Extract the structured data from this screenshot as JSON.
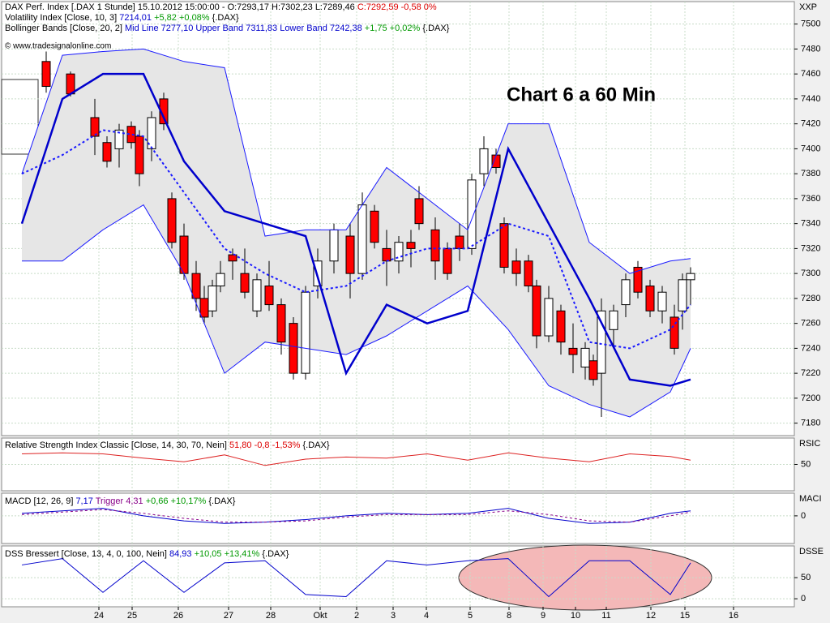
{
  "chart_data": [
    {
      "type": "candlestick",
      "header": [
        [
          {
            "text": "DAX Perf. Index [.DAX  1 Stunde] 15.10.2012 15:00:00 - O:7293,17 H:7302,23 L:7289,46 ",
            "color": "#000000"
          },
          {
            "text": "C:7292,59 -0,58 0%",
            "color": "#dd0000"
          }
        ],
        [
          {
            "text": "Volatility Index [Close, 10, 3] ",
            "color": "#000000"
          },
          {
            "text": "7214,01 ",
            "color": "#0000cc"
          },
          {
            "text": "+5,82 +0,08% ",
            "color": "#009900"
          },
          {
            "text": "{.DAX}",
            "color": "#000000"
          }
        ],
        [
          {
            "text": "Bollinger Bands [Close, 20, 2] ",
            "color": "#000000"
          },
          {
            "text": "Mid Line 7277,10 Upper Band 7311,83 Lower Band 7242,38 ",
            "color": "#0000cc"
          },
          {
            "text": "+1,75 +0,02% ",
            "color": "#009900"
          },
          {
            "text": "{.DAX}",
            "color": "#000000"
          }
        ]
      ],
      "watermark": "© www.tradesignalonline.com",
      "annotation": "Chart 6 a 60 Min",
      "axis_label": "XXP",
      "grid": true,
      "xlim": [
        0,
        195.6
      ],
      "xticks": [
        {
          "value": 24,
          "label": "24"
        },
        {
          "value": 32.2,
          "label": "25"
        },
        {
          "value": 43.6,
          "label": "26"
        },
        {
          "value": 56,
          "label": "27"
        },
        {
          "value": 66.4,
          "label": "28"
        },
        {
          "value": 78.6,
          "label": "Okt"
        },
        {
          "value": 87.6,
          "label": "2"
        },
        {
          "value": 96.6,
          "label": "3"
        },
        {
          "value": 104.8,
          "label": "4"
        },
        {
          "value": 115.6,
          "label": "5"
        },
        {
          "value": 125.2,
          "label": "8"
        },
        {
          "value": 133.6,
          "label": "9"
        },
        {
          "value": 141.6,
          "label": "10"
        },
        {
          "value": 149.2,
          "label": "11"
        },
        {
          "value": 160.2,
          "label": "12"
        },
        {
          "value": 168.6,
          "label": "15"
        },
        {
          "value": 180.6,
          "label": "16"
        }
      ],
      "ylim": [
        7170,
        7518
      ],
      "yticks": [
        7180,
        7200,
        7220,
        7240,
        7260,
        7280,
        7300,
        7320,
        7340,
        7360,
        7380,
        7400,
        7420,
        7440,
        7460,
        7480,
        7500
      ],
      "up_color": "#ffffff",
      "down_color": "#ff0000",
      "candles": {
        "x": [
          11,
          17,
          23,
          26,
          29,
          32,
          34,
          37,
          40,
          42,
          45,
          48,
          50,
          52,
          54,
          57,
          60,
          63,
          66,
          69,
          72,
          75,
          78,
          82,
          86,
          89,
          92,
          95,
          98,
          101,
          103,
          107,
          110,
          113,
          116,
          119,
          122,
          124,
          127,
          130,
          132,
          135,
          138,
          141,
          144,
          146,
          148,
          151,
          154,
          157,
          160,
          163,
          166,
          168,
          170
        ],
        "open": [
          7470,
          7460,
          7425,
          7405,
          7400,
          7418,
          7410,
          7400,
          7440,
          7360,
          7330,
          7300,
          7280,
          7270,
          7290,
          7315,
          7300,
          7270,
          7290,
          7275,
          7260,
          7220,
          7290,
          7310,
          7330,
          7300,
          7350,
          7320,
          7310,
          7325,
          7360,
          7335,
          7320,
          7330,
          7320,
          7380,
          7395,
          7340,
          7310,
          7310,
          7290,
          7250,
          7270,
          7240,
          7225,
          7230,
          7220,
          7255,
          7275,
          7305,
          7290,
          7270,
          7265,
          7270,
          7295
        ],
        "high": [
          7478,
          7462,
          7440,
          7410,
          7420,
          7422,
          7415,
          7430,
          7445,
          7365,
          7340,
          7310,
          7290,
          7295,
          7310,
          7320,
          7320,
          7300,
          7310,
          7280,
          7265,
          7290,
          7320,
          7340,
          7340,
          7365,
          7355,
          7335,
          7330,
          7335,
          7370,
          7345,
          7325,
          7340,
          7380,
          7410,
          7400,
          7345,
          7320,
          7315,
          7295,
          7290,
          7275,
          7260,
          7245,
          7235,
          7280,
          7275,
          7300,
          7310,
          7295,
          7290,
          7275,
          7300,
          7305
        ],
        "low": [
          7445,
          7442,
          7395,
          7385,
          7385,
          7400,
          7370,
          7390,
          7415,
          7320,
          7295,
          7270,
          7260,
          7265,
          7285,
          7295,
          7280,
          7265,
          7270,
          7235,
          7215,
          7215,
          7280,
          7300,
          7280,
          7295,
          7320,
          7290,
          7300,
          7305,
          7335,
          7295,
          7295,
          7310,
          7315,
          7370,
          7380,
          7300,
          7290,
          7285,
          7240,
          7245,
          7235,
          7220,
          7215,
          7210,
          7185,
          7240,
          7265,
          7280,
          7265,
          7260,
          7235,
          7255,
          7275
        ],
        "close": [
          7450,
          7444,
          7410,
          7390,
          7415,
          7405,
          7380,
          7425,
          7420,
          7325,
          7300,
          7280,
          7265,
          7290,
          7300,
          7310,
          7285,
          7295,
          7275,
          7245,
          7220,
          7285,
          7310,
          7335,
          7300,
          7355,
          7325,
          7310,
          7325,
          7320,
          7340,
          7310,
          7300,
          7320,
          7375,
          7400,
          7385,
          7305,
          7300,
          7290,
          7250,
          7280,
          7245,
          7235,
          7240,
          7215,
          7270,
          7270,
          7295,
          7285,
          7270,
          7285,
          7240,
          7295,
          7300
        ]
      },
      "band_x": [
        5,
        15,
        25,
        35,
        45,
        55,
        65,
        75,
        85,
        95,
        105,
        115,
        125,
        135,
        145,
        155,
        165,
        170
      ],
      "band_fill": "#e6e6e6",
      "series": [
        {
          "color": "#1a1aff",
          "width": 1,
          "dash": false,
          "values": [
            7380,
            7475,
            7478,
            7480,
            7470,
            7465,
            7330,
            7335,
            7335,
            7385,
            7360,
            7335,
            7420,
            7420,
            7325,
            7300,
            7310,
            7312
          ]
        },
        {
          "color": "#1a1aff",
          "width": 2,
          "dash": true,
          "values": [
            7380,
            7395,
            7415,
            7410,
            7365,
            7320,
            7300,
            7285,
            7290,
            7310,
            7320,
            7320,
            7340,
            7330,
            7245,
            7240,
            7255,
            7275
          ]
        },
        {
          "color": "#1a1aff",
          "width": 1,
          "dash": false,
          "values": [
            7310,
            7310,
            7335,
            7355,
            7300,
            7220,
            7245,
            7240,
            7235,
            7250,
            7270,
            7290,
            7255,
            7210,
            7195,
            7185,
            7205,
            7240
          ]
        },
        {
          "color": "#0000cc",
          "width": 2.5,
          "dash": false,
          "values": [
            7340,
            7440,
            7460,
            7460,
            7390,
            7350,
            7340,
            7330,
            7220,
            7275,
            7260,
            7270,
            7400,
            7340,
            7280,
            7215,
            7210,
            7215
          ]
        }
      ]
    },
    {
      "type": "line",
      "header": [
        [
          {
            "text": "Relative Strength Index Classic [Close, 14, 30, 70, Nein] ",
            "color": "#000000"
          },
          {
            "text": "51,80 -0,8 -1,53% ",
            "color": "#dd0000"
          },
          {
            "text": "{.DAX}",
            "color": "#000000"
          }
        ]
      ],
      "axis_label": "RSIC",
      "ylim": [
        0,
        100
      ],
      "yticks": [
        50
      ],
      "series": [
        {
          "color": "#dd2222",
          "width": 1,
          "dash": false,
          "values": [
            70,
            72,
            70,
            62,
            55,
            68,
            48,
            60,
            64,
            62,
            70,
            58,
            72,
            62,
            55,
            70,
            65,
            58
          ]
        }
      ]
    },
    {
      "type": "line",
      "header": [
        [
          {
            "text": "MACD [12, 26, 9] ",
            "color": "#000000"
          },
          {
            "text": "7,17 ",
            "color": "#0000cc"
          },
          {
            "text": "Trigger 4,31 ",
            "color": "#880088"
          },
          {
            "text": "+0,66 +10,17% ",
            "color": "#009900"
          },
          {
            "text": "{.DAX}",
            "color": "#000000"
          }
        ]
      ],
      "axis_label": "MACI",
      "ylim": [
        -22,
        18
      ],
      "yticks": [
        0
      ],
      "series": [
        {
          "color": "#0000cc",
          "width": 1,
          "dash": false,
          "values": [
            2,
            4,
            6,
            0,
            -4,
            -6,
            -5,
            -3,
            0,
            2,
            1,
            2,
            6,
            -2,
            -6,
            -5,
            2,
            4
          ]
        },
        {
          "color": "#880088",
          "width": 1,
          "dash": true,
          "values": [
            1,
            3,
            5,
            2,
            -2,
            -5,
            -5,
            -4,
            -1,
            1,
            1,
            1,
            4,
            1,
            -4,
            -5,
            0,
            3
          ]
        }
      ]
    },
    {
      "type": "line",
      "header": [
        [
          {
            "text": "DSS Bressert [Close, 13, 4, 0, 100, Nein] ",
            "color": "#000000"
          },
          {
            "text": "84,93 ",
            "color": "#0000cc"
          },
          {
            "text": "+10,05 +13,41% ",
            "color": "#009900"
          },
          {
            "text": "{.DAX}",
            "color": "#000000"
          }
        ]
      ],
      "axis_label": "DSSE",
      "ylim": [
        -19,
        125
      ],
      "yticks": [
        0,
        50
      ],
      "series": [
        {
          "color": "#0000cc",
          "width": 1,
          "dash": false,
          "values": [
            80,
            95,
            15,
            90,
            15,
            85,
            90,
            10,
            5,
            90,
            80,
            90,
            95,
            5,
            90,
            90,
            10,
            85
          ]
        }
      ]
    }
  ]
}
